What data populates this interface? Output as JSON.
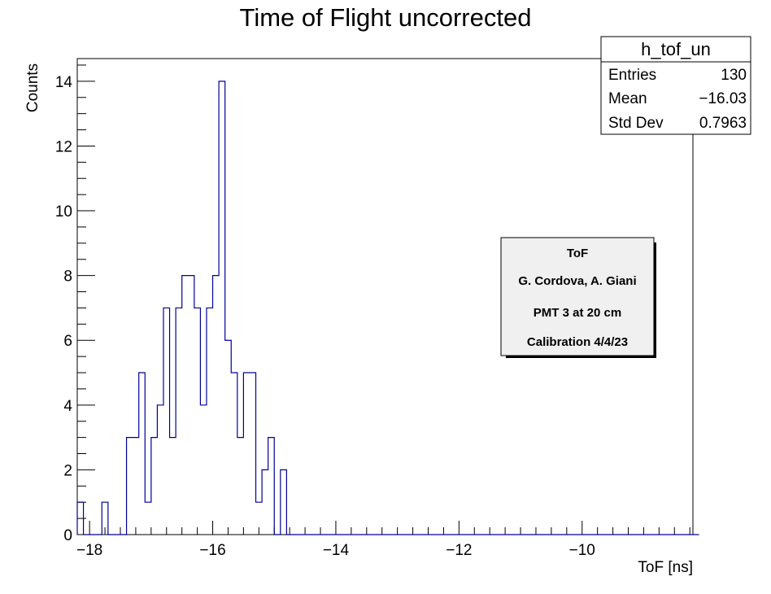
{
  "chart_data": {
    "type": "histogram",
    "title": "Time of Flight uncorrected",
    "xlabel": "ToF [ns]",
    "ylabel": "Counts",
    "xlim": [
      -18.2,
      -8.2
    ],
    "ylim": [
      0,
      14.7
    ],
    "bin_width": 0.1,
    "x_ticks": [
      -18,
      -16,
      -14,
      -12,
      -10
    ],
    "x_tick_labels": [
      "−18",
      "−16",
      "−14",
      "−12",
      "−10"
    ],
    "y_ticks": [
      0,
      2,
      4,
      6,
      8,
      10,
      12,
      14
    ],
    "y_tick_labels": [
      "0",
      "2",
      "4",
      "6",
      "8",
      "10",
      "12",
      "14"
    ],
    "line_color": "#000099",
    "grid": false,
    "values": [
      1,
      0,
      0,
      0,
      1,
      0,
      0,
      0,
      3,
      3,
      5,
      1,
      3,
      4,
      7,
      3,
      7,
      8,
      8,
      7,
      4,
      7,
      8,
      14,
      6,
      5,
      3,
      5,
      5,
      1,
      2,
      3,
      0,
      2,
      0,
      0,
      0,
      0,
      0,
      0,
      0,
      0,
      0,
      0,
      0,
      0,
      0,
      0,
      0,
      0,
      0,
      0,
      0,
      0,
      0,
      0,
      0,
      0,
      0,
      0,
      0,
      0,
      0,
      0,
      0,
      0,
      0,
      0,
      0,
      0,
      0,
      0,
      0,
      0,
      0,
      0,
      0,
      0,
      0,
      0,
      0,
      0,
      0,
      0,
      0,
      0,
      0,
      0,
      0,
      0,
      0,
      0,
      0,
      0,
      0,
      0,
      0,
      0,
      0,
      0,
      0
    ]
  },
  "stats_box": {
    "name": "h_tof_un",
    "rows": [
      {
        "label": "Entries",
        "value": "130"
      },
      {
        "label": "Mean",
        "value": "−16.03"
      },
      {
        "label": "Std Dev",
        "value": "0.7963"
      }
    ]
  },
  "info_box": {
    "lines": [
      "ToF",
      "G. Cordova, A. Giani",
      "PMT 3 at 20 cm",
      "Calibration 4/4/23"
    ]
  }
}
